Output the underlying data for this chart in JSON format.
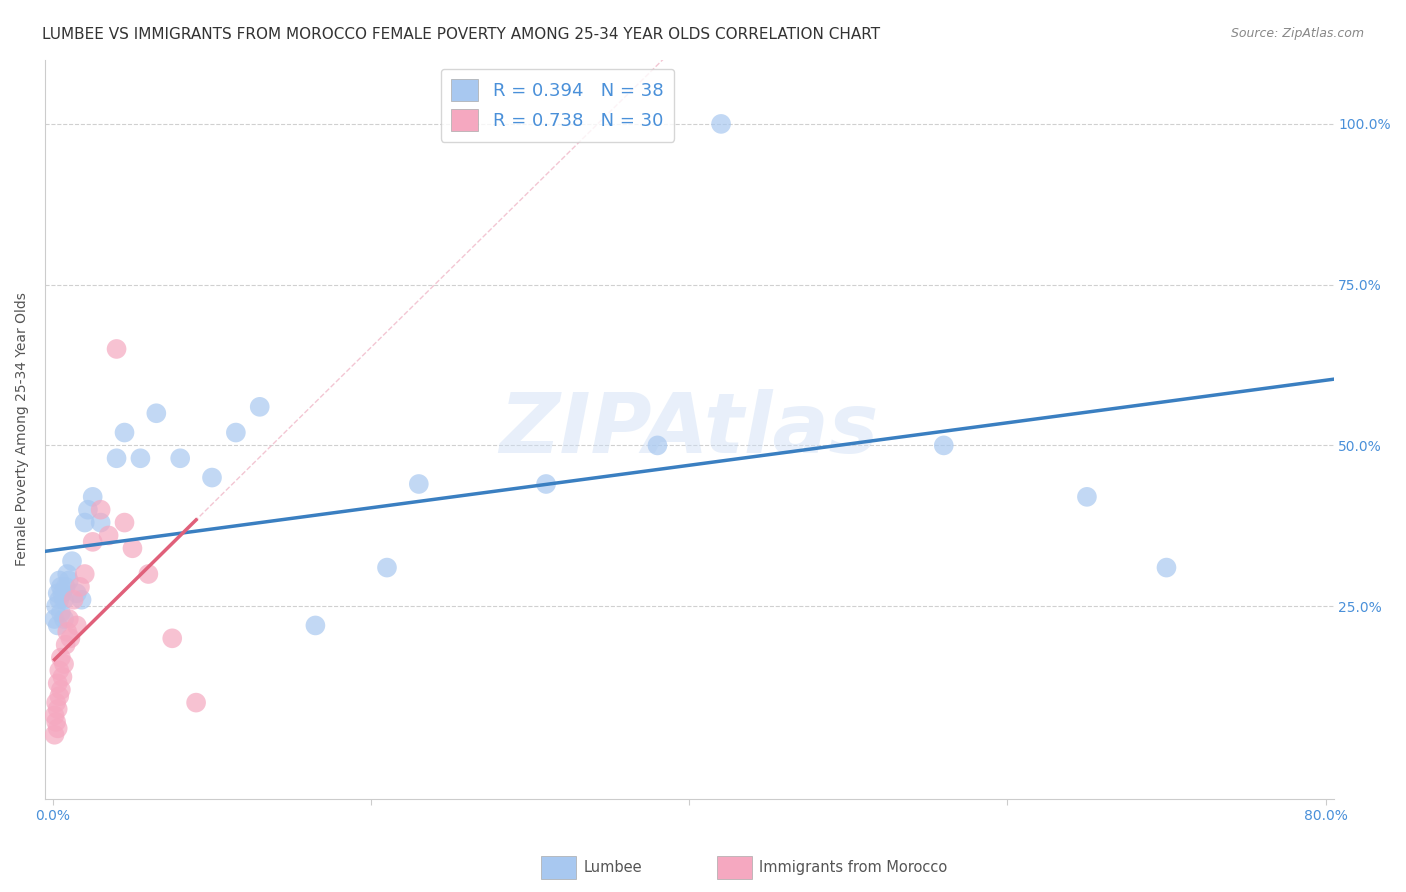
{
  "title": "LUMBEE VS IMMIGRANTS FROM MOROCCO FEMALE POVERTY AMONG 25-34 YEAR OLDS CORRELATION CHART",
  "source": "Source: ZipAtlas.com",
  "ylabel": "Female Poverty Among 25-34 Year Olds",
  "xlim": [
    -0.005,
    0.805
  ],
  "ylim": [
    -0.05,
    1.1
  ],
  "background_color": "#ffffff",
  "grid_color": "#d0d0d0",
  "watermark": "ZIPAtlas",
  "lumbee_color": "#a8c8f0",
  "morocco_color": "#f5a8c0",
  "lumbee_line_color": "#3a7fc1",
  "morocco_line_color": "#e0607a",
  "ref_line_color": "#f0b8c8",
  "legend_lumbee_R": "R = 0.394",
  "legend_lumbee_N": "N = 38",
  "legend_morocco_R": "R = 0.738",
  "legend_morocco_N": "N = 30",
  "lumbee_x": [
    0.001,
    0.002,
    0.003,
    0.003,
    0.004,
    0.004,
    0.005,
    0.005,
    0.006,
    0.007,
    0.007,
    0.008,
    0.009,
    0.01,
    0.012,
    0.015,
    0.018,
    0.02,
    0.022,
    0.025,
    0.03,
    0.04,
    0.045,
    0.055,
    0.065,
    0.08,
    0.1,
    0.115,
    0.13,
    0.165,
    0.21,
    0.23,
    0.31,
    0.38,
    0.42,
    0.56,
    0.65,
    0.7
  ],
  "lumbee_y": [
    0.23,
    0.25,
    0.22,
    0.27,
    0.29,
    0.26,
    0.28,
    0.24,
    0.27,
    0.23,
    0.26,
    0.28,
    0.3,
    0.29,
    0.32,
    0.27,
    0.26,
    0.38,
    0.4,
    0.42,
    0.38,
    0.48,
    0.52,
    0.48,
    0.55,
    0.48,
    0.45,
    0.52,
    0.56,
    0.22,
    0.31,
    0.44,
    0.44,
    0.5,
    1.0,
    0.5,
    0.42,
    0.31
  ],
  "morocco_x": [
    0.001,
    0.001,
    0.002,
    0.002,
    0.003,
    0.003,
    0.003,
    0.004,
    0.004,
    0.005,
    0.005,
    0.006,
    0.007,
    0.008,
    0.009,
    0.01,
    0.011,
    0.013,
    0.015,
    0.017,
    0.02,
    0.025,
    0.03,
    0.035,
    0.04,
    0.045,
    0.05,
    0.06,
    0.075,
    0.09
  ],
  "morocco_y": [
    0.05,
    0.08,
    0.07,
    0.1,
    0.06,
    0.09,
    0.13,
    0.11,
    0.15,
    0.12,
    0.17,
    0.14,
    0.16,
    0.19,
    0.21,
    0.23,
    0.2,
    0.26,
    0.22,
    0.28,
    0.3,
    0.35,
    0.4,
    0.36,
    0.65,
    0.38,
    0.34,
    0.3,
    0.2,
    0.1
  ],
  "title_fontsize": 11,
  "axis_label_fontsize": 10,
  "tick_fontsize": 10,
  "legend_fontsize": 12
}
